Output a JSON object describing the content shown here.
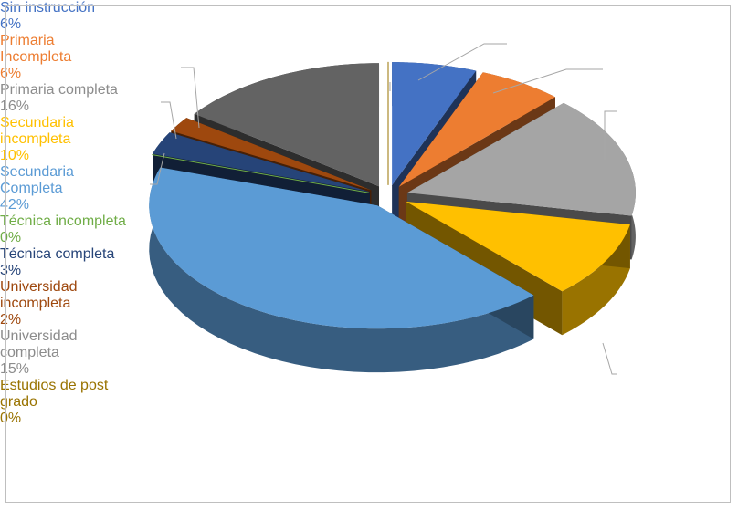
{
  "chart_data": {
    "type": "pie",
    "categories": [
      "Sin instrucción",
      "Primaria Incompleta",
      "Primaria completa",
      "Secundaria incompleta",
      "Secundaria Completa",
      "Técnica incompleta",
      "Técnica completa",
      "Universidad incompleta",
      "Universidad completa",
      "Estudios de post grado"
    ],
    "values": [
      6,
      6,
      16,
      10,
      42,
      0,
      3,
      2,
      15,
      0
    ],
    "value_labels": [
      "6%",
      "6%",
      "16%",
      "10%",
      "42%",
      "0%",
      "3%",
      "2%",
      "15%",
      "0%"
    ],
    "colors": [
      "#4472c4",
      "#ed7d31",
      "#a5a5a5",
      "#ffc000",
      "#5b9bd5",
      "#70ad47",
      "#264478",
      "#9e480e",
      "#636363",
      "#997300"
    ]
  }
}
